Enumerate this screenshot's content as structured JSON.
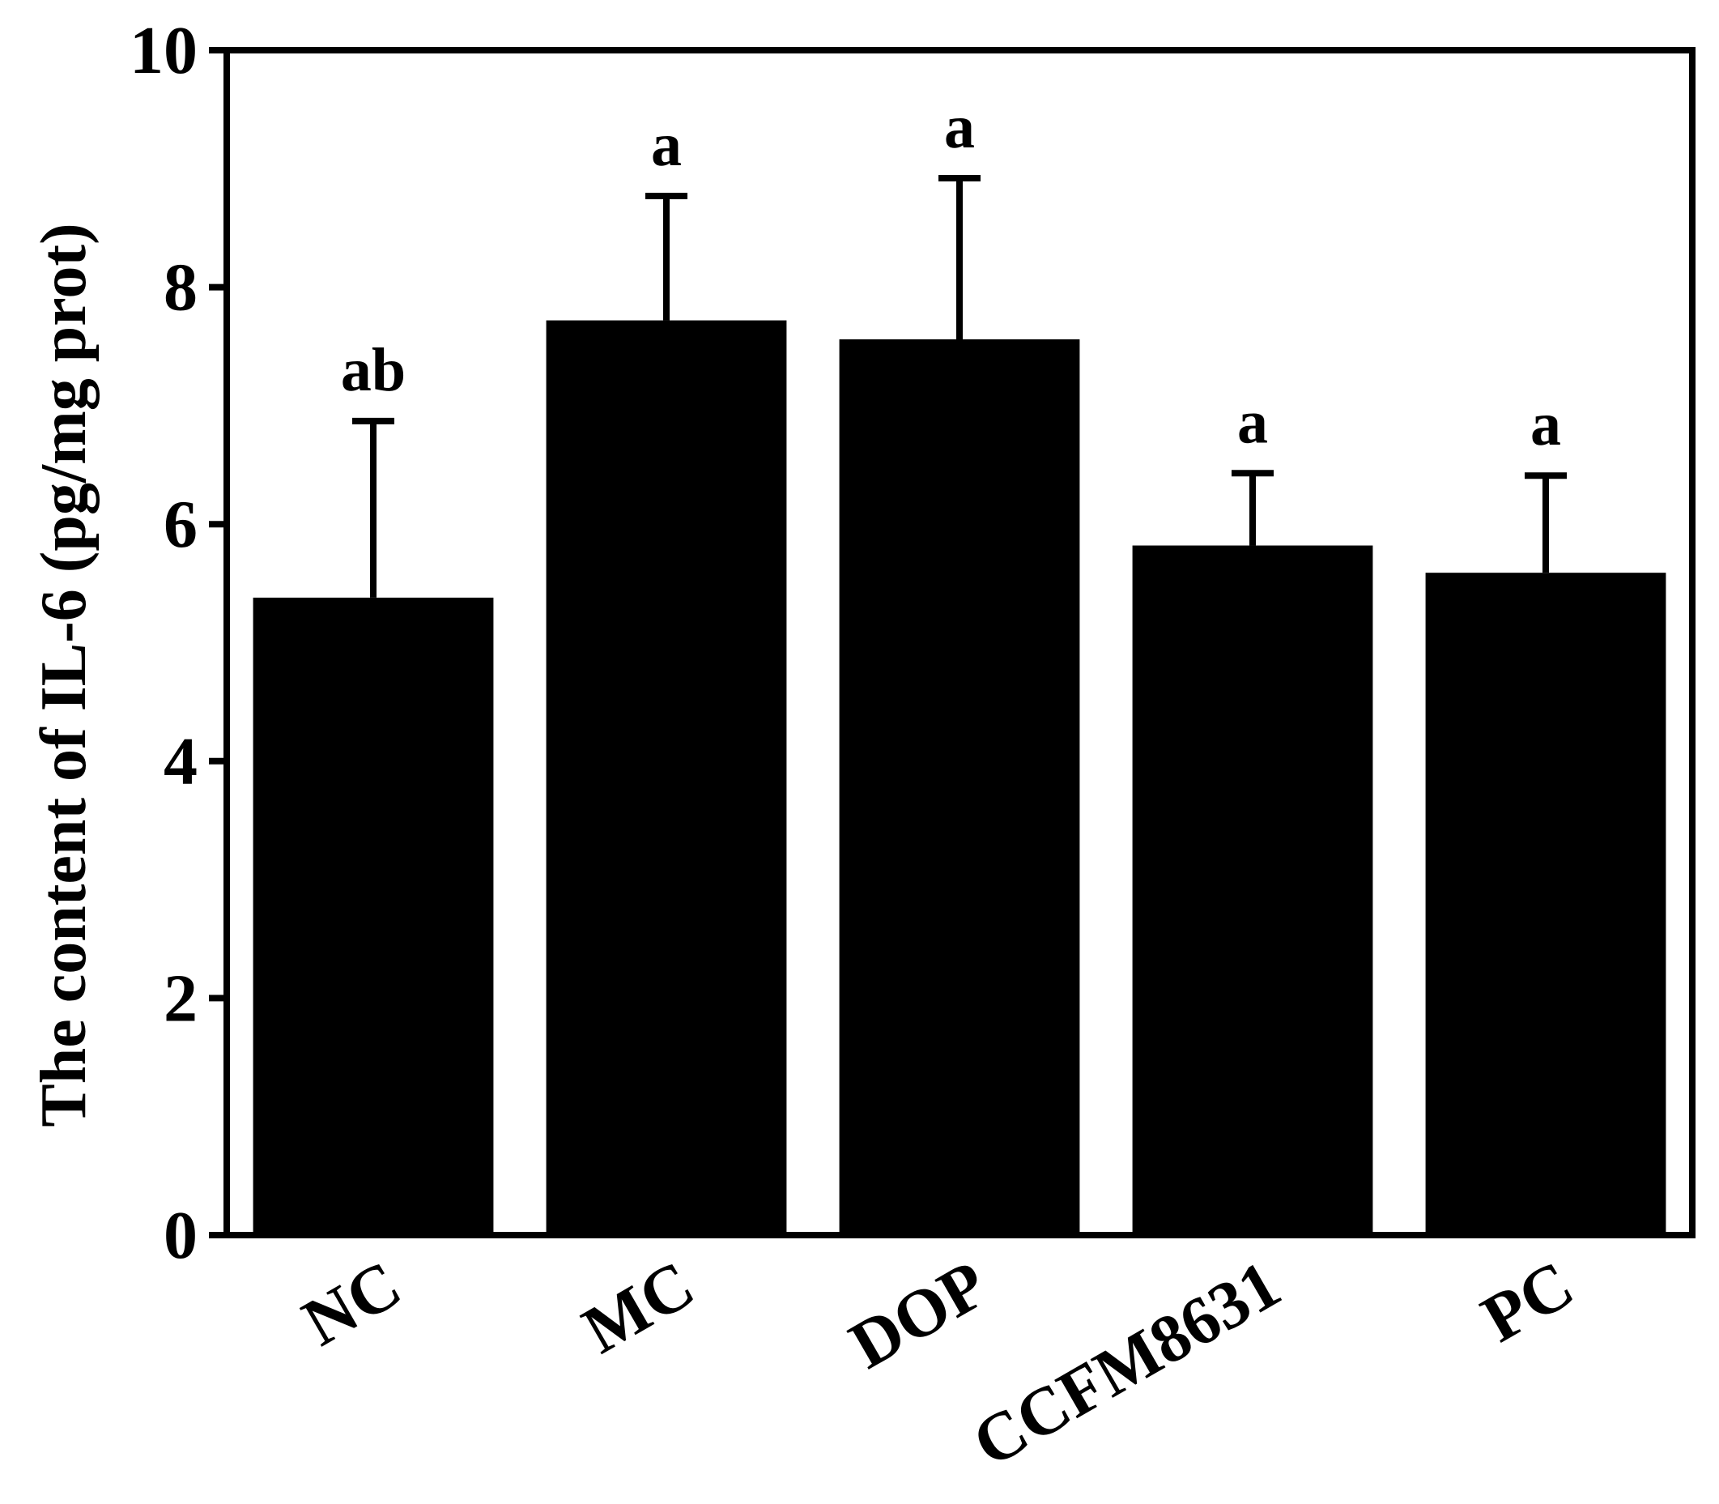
{
  "chart_data": {
    "type": "bar",
    "title": "",
    "xlabel": "",
    "ylabel": "The content of IL-6 (pg/mg prot)",
    "ylim": [
      0,
      10
    ],
    "yticks": [
      "0",
      "2",
      "4",
      "6",
      "8",
      "10"
    ],
    "categories": [
      "NC",
      "MC",
      "DOP",
      "CCFM8631",
      "PC"
    ],
    "values": [
      5.38,
      7.72,
      7.56,
      5.82,
      5.59
    ],
    "errors": [
      1.49,
      1.05,
      1.36,
      0.61,
      0.82
    ],
    "significance": [
      "ab",
      "a",
      "a",
      "a",
      "a"
    ],
    "bar_color": "#000000",
    "grid": false,
    "legend": "none"
  }
}
